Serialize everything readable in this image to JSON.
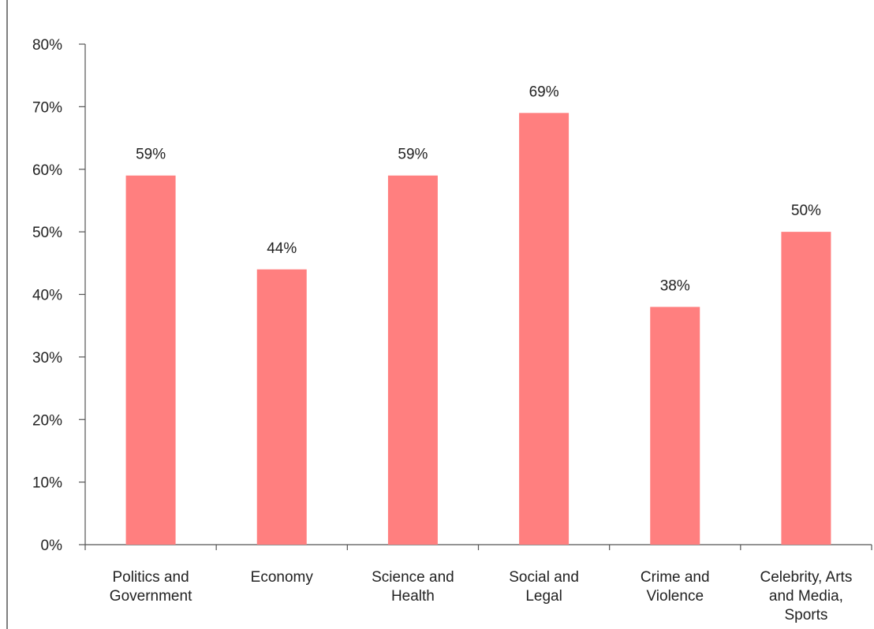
{
  "chart_data": {
    "type": "bar",
    "title": "",
    "xlabel": "",
    "ylabel": "",
    "categories": [
      [
        "Politics and",
        "Government"
      ],
      [
        "Economy"
      ],
      [
        "Science and",
        "Health"
      ],
      [
        "Social and",
        "Legal"
      ],
      [
        "Crime and",
        "Violence"
      ],
      [
        "Celebrity, Arts",
        "and Media,",
        "Sports"
      ]
    ],
    "values": [
      59,
      44,
      59,
      69,
      38,
      50
    ],
    "data_labels": [
      "59%",
      "44%",
      "59%",
      "69%",
      "38%",
      "50%"
    ],
    "ylim": [
      0,
      80
    ],
    "yticks": [
      0,
      10,
      20,
      30,
      40,
      50,
      60,
      70,
      80
    ],
    "ytick_labels": [
      "0%",
      "10%",
      "20%",
      "30%",
      "40%",
      "50%",
      "60%",
      "70%",
      "80%"
    ],
    "grid": false,
    "legend": "none",
    "bar_color": "#FF7F7F",
    "axis_color": "#555555"
  }
}
